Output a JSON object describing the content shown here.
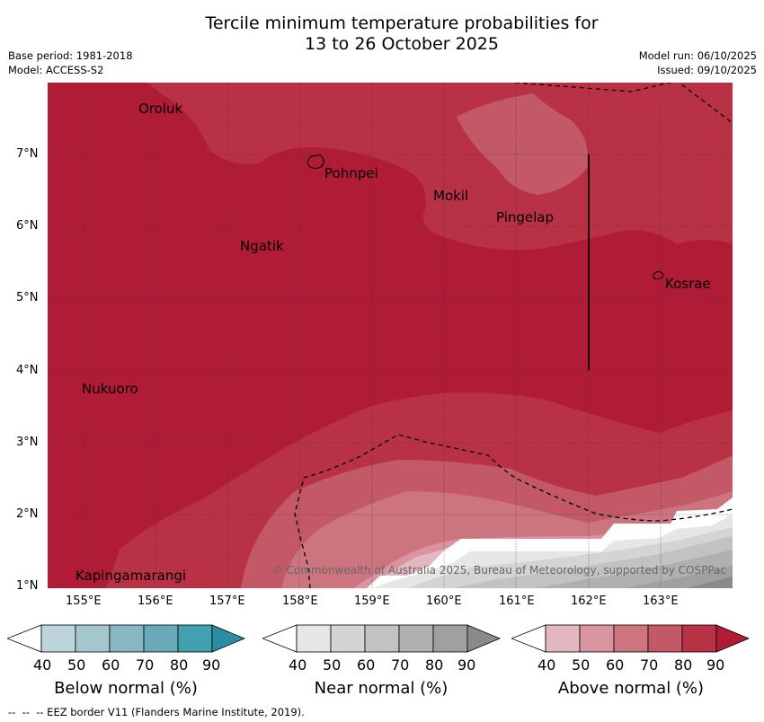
{
  "title": {
    "line1": "Tercile minimum temperature probabilities for",
    "line2": "13 to 26 October 2025"
  },
  "meta": {
    "base_period": "Base period: 1981-2018",
    "model": "Model: ACCESS-S2",
    "model_run": "Model run: 06/10/2025",
    "issued": "Issued: 09/10/2025"
  },
  "map": {
    "copyright": "© Commonwealth of Australia 2025, Bureau of Meteorology, supported by COSPPac",
    "lon_ticks": [
      "155°E",
      "156°E",
      "157°E",
      "158°E",
      "159°E",
      "160°E",
      "161°E",
      "162°E",
      "163°E"
    ],
    "lat_ticks": [
      "7°N",
      "6°N",
      "5°N",
      "4°N",
      "3°N",
      "2°N",
      "1°N"
    ],
    "places": [
      "Oroluk",
      "Pohnpei",
      "Mokil",
      "Pingelap",
      "Ngatik",
      "Kosrae",
      "Nukuoro",
      "Kapingamarangi"
    ]
  },
  "colorbars": [
    {
      "label": "Below normal (%)",
      "ticks": [
        "40",
        "50",
        "60",
        "70",
        "80",
        "90"
      ],
      "colors": [
        "#bdd4db",
        "#a4c6cd",
        "#88b7c1",
        "#68aab7",
        "#42a0b0",
        "#2a8ea2"
      ]
    },
    {
      "label": "Near normal (%)",
      "ticks": [
        "40",
        "50",
        "60",
        "70",
        "80",
        "90"
      ],
      "colors": [
        "#e6e6e6",
        "#d4d4d4",
        "#c2c2c2",
        "#b0b0b0",
        "#a0a0a0",
        "#8a8a8a"
      ]
    },
    {
      "label": "Above normal (%)",
      "ticks": [
        "40",
        "50",
        "60",
        "70",
        "80",
        "90"
      ],
      "colors": [
        "#e2b7bf",
        "#d8959f",
        "#cd757f",
        "#c35866",
        "#b93145",
        "#b01c36"
      ]
    }
  ],
  "footer": "--  --  -- EEZ border V11 (Flanders Marine Institute, 2019)."
}
